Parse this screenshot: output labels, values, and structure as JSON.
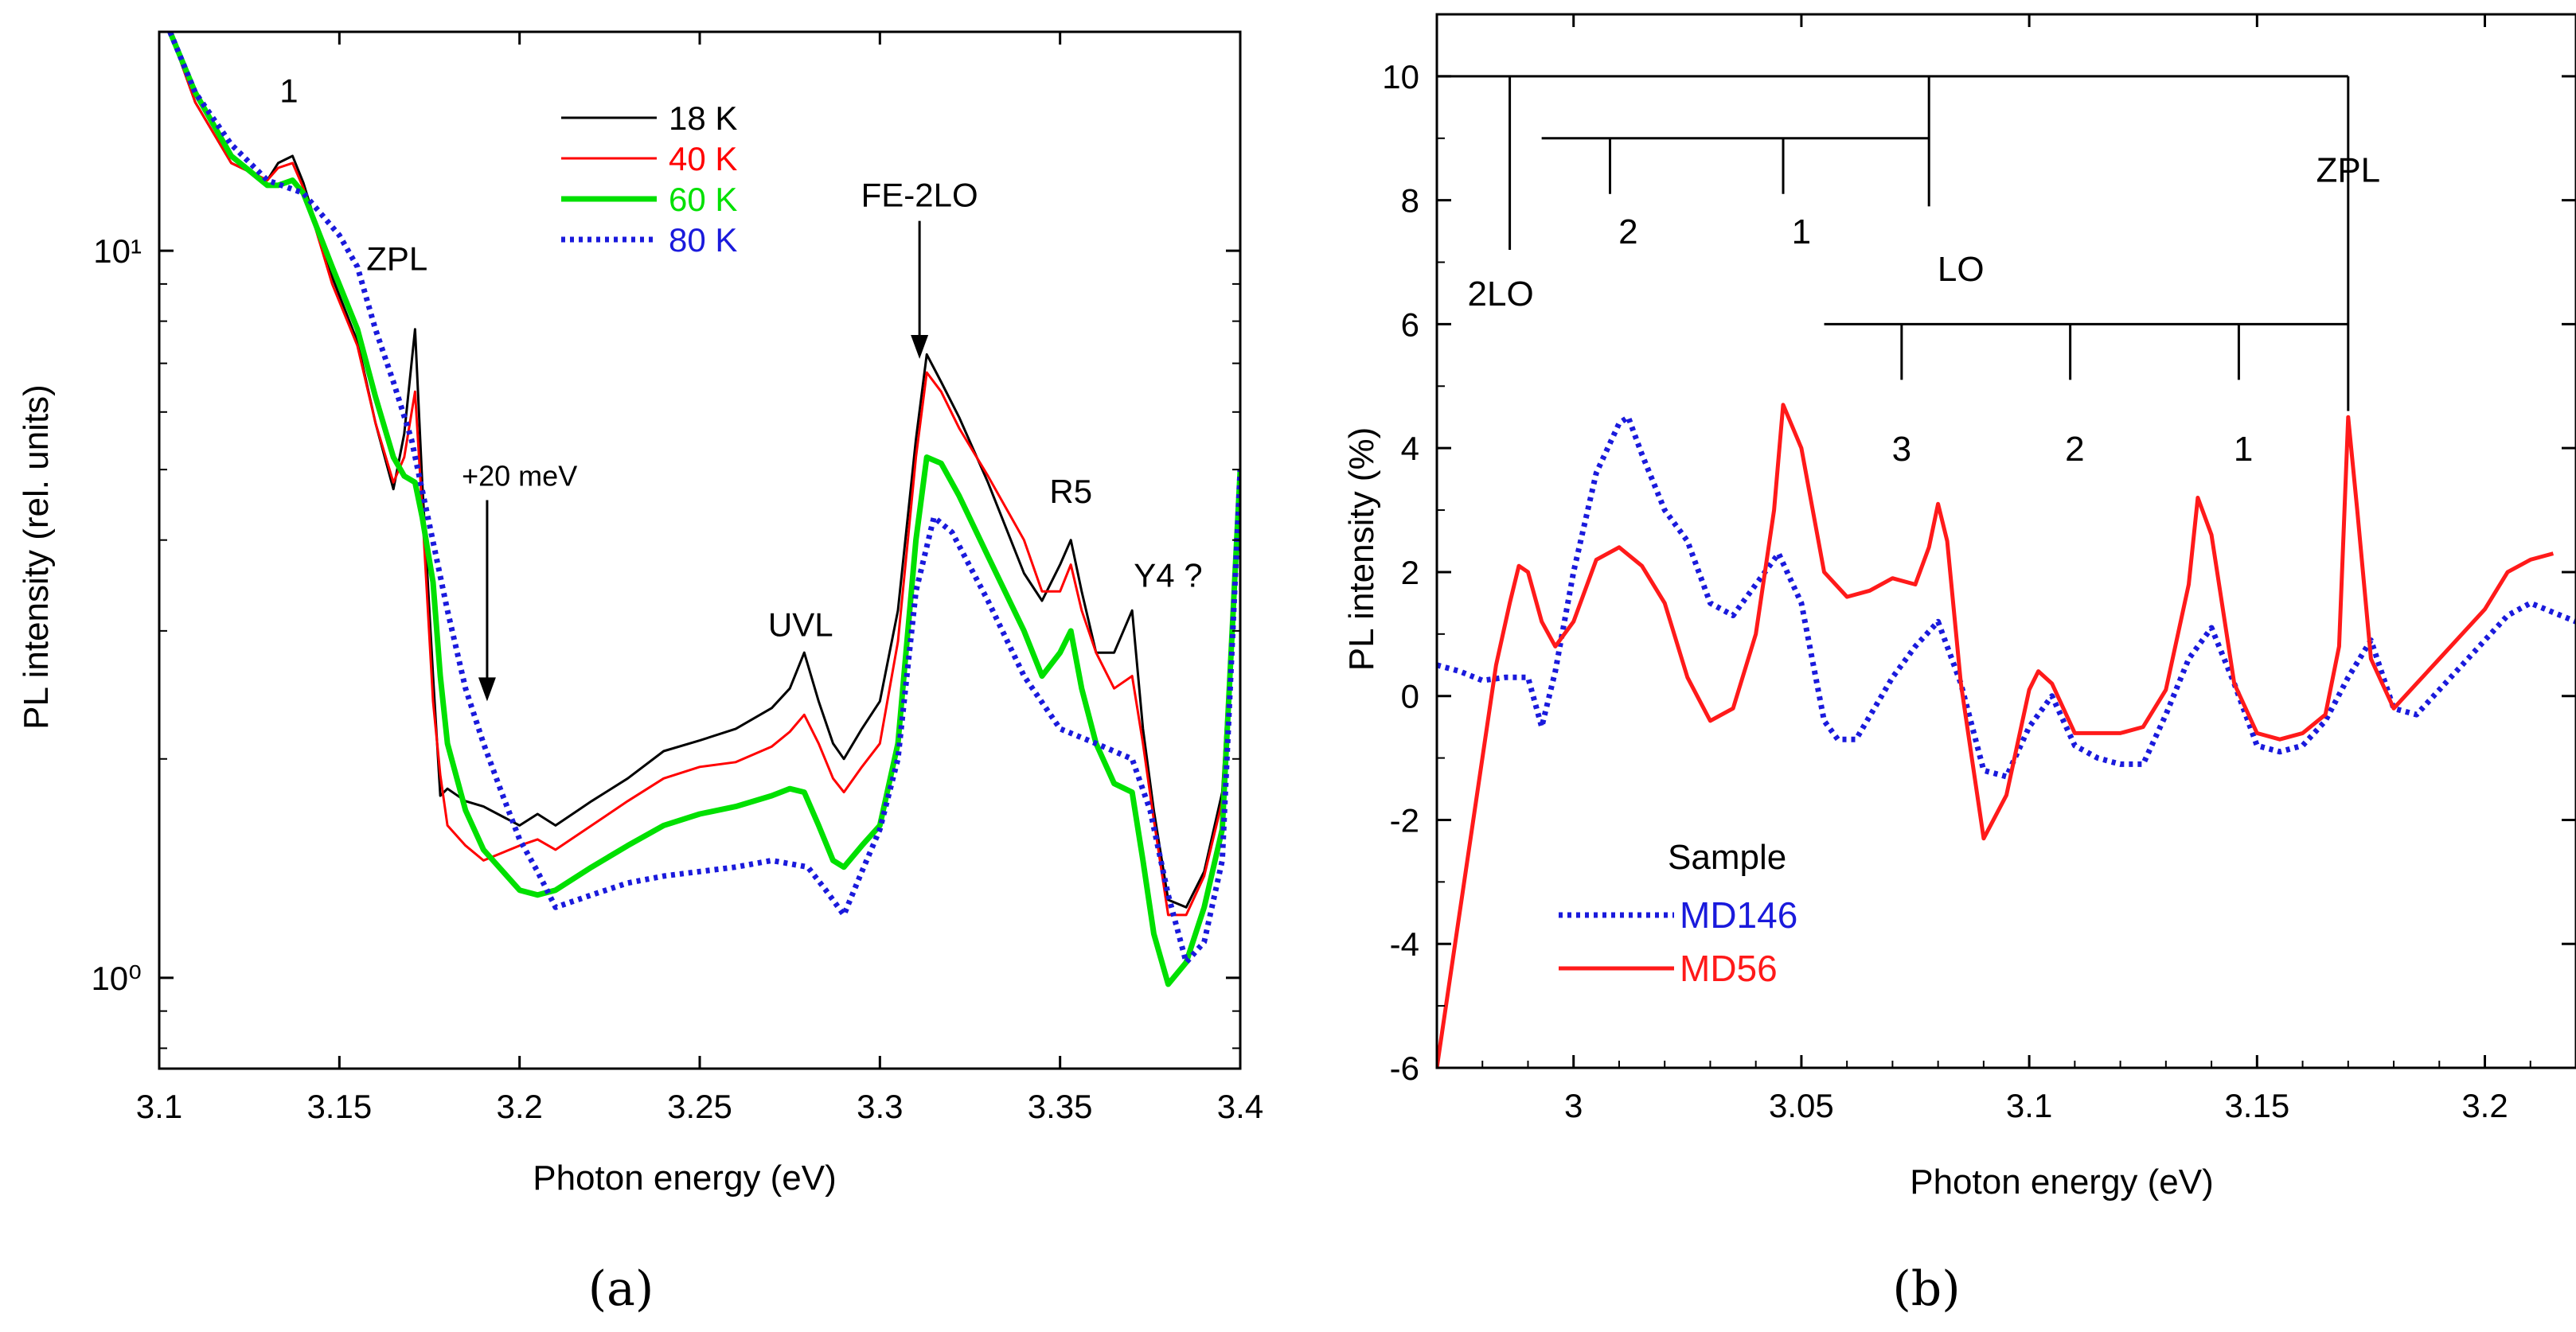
{
  "chart_data": [
    {
      "panel": "a",
      "type": "line",
      "yscale": "log",
      "caption": "(a)",
      "title": "",
      "xlabel": "Photon energy (eV)",
      "ylabel": "PL intensity (rel. units)",
      "xlim": [
        3.1,
        3.4
      ],
      "ylim": [
        0.75,
        20
      ],
      "x_ticks": [
        3.1,
        3.15,
        3.2,
        3.25,
        3.3,
        3.35,
        3.4
      ],
      "x_tick_labels": [
        "3.1",
        "3.15",
        "3.2",
        "3.25",
        "3.3",
        "3.35",
        "3.4"
      ],
      "y_ticks": [
        1,
        10
      ],
      "y_tick_labels": [
        "10⁰",
        "10¹"
      ],
      "grid": false,
      "legend_position": "top-center",
      "series": [
        {
          "name": "18 K",
          "color": "#000000",
          "style": "solid",
          "x": [
            3.103,
            3.11,
            3.12,
            3.13,
            3.133,
            3.137,
            3.14,
            3.148,
            3.155,
            3.16,
            3.165,
            3.168,
            3.171,
            3.173,
            3.176,
            3.178,
            3.18,
            3.185,
            3.19,
            3.2,
            3.205,
            3.21,
            3.22,
            3.23,
            3.24,
            3.25,
            3.26,
            3.27,
            3.275,
            3.279,
            3.283,
            3.287,
            3.29,
            3.295,
            3.3,
            3.305,
            3.31,
            3.313,
            3.317,
            3.322,
            3.33,
            3.34,
            3.345,
            3.35,
            3.353,
            3.356,
            3.36,
            3.365,
            3.37,
            3.373,
            3.376,
            3.38,
            3.385,
            3.39,
            3.395,
            3.4
          ],
          "y": [
            20,
            16,
            13.2,
            12.5,
            13.2,
            13.5,
            12.4,
            9.2,
            7.5,
            5.8,
            4.7,
            5.6,
            7.8,
            4.8,
            2.6,
            1.78,
            1.82,
            1.75,
            1.72,
            1.62,
            1.68,
            1.62,
            1.75,
            1.88,
            2.05,
            2.12,
            2.2,
            2.35,
            2.5,
            2.8,
            2.4,
            2.1,
            2.0,
            2.2,
            2.4,
            3.2,
            5.5,
            7.2,
            6.6,
            5.9,
            4.8,
            3.6,
            3.3,
            3.7,
            4.0,
            3.4,
            2.8,
            2.8,
            3.2,
            2.2,
            1.7,
            1.28,
            1.25,
            1.4,
            1.8,
            5.0
          ]
        },
        {
          "name": "40 K",
          "color": "#ff0000",
          "style": "solid",
          "x": [
            3.103,
            3.11,
            3.12,
            3.13,
            3.133,
            3.137,
            3.14,
            3.148,
            3.155,
            3.16,
            3.165,
            3.168,
            3.171,
            3.173,
            3.176,
            3.178,
            3.18,
            3.185,
            3.19,
            3.2,
            3.205,
            3.21,
            3.22,
            3.23,
            3.24,
            3.25,
            3.26,
            3.27,
            3.275,
            3.279,
            3.283,
            3.287,
            3.29,
            3.295,
            3.3,
            3.305,
            3.31,
            3.313,
            3.317,
            3.322,
            3.33,
            3.34,
            3.345,
            3.35,
            3.353,
            3.356,
            3.36,
            3.365,
            3.37,
            3.373,
            3.376,
            3.38,
            3.385,
            3.39,
            3.395,
            3.4
          ],
          "y": [
            20,
            16,
            13.2,
            12.5,
            13,
            13.2,
            12.2,
            9.0,
            7.4,
            5.8,
            4.8,
            5.2,
            6.4,
            4.4,
            2.4,
            1.9,
            1.62,
            1.52,
            1.45,
            1.52,
            1.55,
            1.5,
            1.62,
            1.75,
            1.88,
            1.95,
            1.98,
            2.08,
            2.18,
            2.3,
            2.1,
            1.88,
            1.8,
            1.95,
            2.1,
            2.9,
            5.2,
            6.8,
            6.4,
            5.7,
            4.9,
            4.0,
            3.4,
            3.4,
            3.7,
            3.2,
            2.8,
            2.5,
            2.6,
            2.1,
            1.65,
            1.22,
            1.22,
            1.38,
            1.75,
            5.0
          ]
        },
        {
          "name": "60 K",
          "color": "#00e000",
          "style": "solid",
          "x": [
            3.103,
            3.11,
            3.12,
            3.13,
            3.133,
            3.137,
            3.14,
            3.148,
            3.155,
            3.16,
            3.165,
            3.168,
            3.171,
            3.173,
            3.176,
            3.178,
            3.18,
            3.185,
            3.19,
            3.2,
            3.205,
            3.21,
            3.22,
            3.23,
            3.24,
            3.25,
            3.26,
            3.27,
            3.275,
            3.279,
            3.283,
            3.287,
            3.29,
            3.295,
            3.3,
            3.305,
            3.31,
            3.313,
            3.317,
            3.322,
            3.33,
            3.34,
            3.345,
            3.35,
            3.353,
            3.356,
            3.36,
            3.365,
            3.37,
            3.373,
            3.376,
            3.38,
            3.385,
            3.39,
            3.395,
            3.4
          ],
          "y": [
            20,
            16.5,
            13.5,
            12.3,
            12.3,
            12.5,
            12.0,
            9.5,
            7.8,
            6.3,
            5.2,
            4.9,
            4.8,
            4.3,
            3.5,
            2.6,
            2.1,
            1.7,
            1.5,
            1.32,
            1.3,
            1.32,
            1.42,
            1.52,
            1.62,
            1.68,
            1.72,
            1.78,
            1.82,
            1.8,
            1.62,
            1.45,
            1.42,
            1.52,
            1.62,
            2.1,
            4.0,
            5.2,
            5.1,
            4.6,
            3.8,
            3.0,
            2.6,
            2.8,
            3.0,
            2.5,
            2.1,
            1.85,
            1.8,
            1.45,
            1.15,
            0.98,
            1.05,
            1.25,
            1.6,
            5.0
          ]
        },
        {
          "name": "80 K",
          "color": "#1a1adc",
          "style": "dotted",
          "x": [
            3.103,
            3.11,
            3.12,
            3.13,
            3.14,
            3.15,
            3.155,
            3.16,
            3.165,
            3.17,
            3.175,
            3.18,
            3.185,
            3.19,
            3.195,
            3.2,
            3.205,
            3.21,
            3.22,
            3.23,
            3.24,
            3.25,
            3.26,
            3.27,
            3.28,
            3.285,
            3.29,
            3.295,
            3.3,
            3.305,
            3.31,
            3.315,
            3.32,
            3.33,
            3.34,
            3.35,
            3.36,
            3.37,
            3.375,
            3.38,
            3.385,
            3.39,
            3.395,
            3.4
          ],
          "y": [
            20,
            16.5,
            14,
            12.5,
            12,
            10.5,
            9.5,
            7.8,
            6.6,
            5.5,
            4.2,
            3.2,
            2.5,
            2.1,
            1.8,
            1.55,
            1.4,
            1.25,
            1.3,
            1.35,
            1.38,
            1.4,
            1.42,
            1.45,
            1.42,
            1.32,
            1.22,
            1.4,
            1.6,
            2.0,
            3.4,
            4.3,
            4.1,
            3.3,
            2.6,
            2.2,
            2.1,
            2.0,
            1.7,
            1.3,
            1.05,
            1.12,
            1.45,
            5.0
          ]
        }
      ],
      "annotations": [
        {
          "text": "1",
          "x": 3.136,
          "y": 16
        },
        {
          "text": "ZPL",
          "x": 3.166,
          "y": 9.4
        },
        {
          "text": "+20 meV",
          "x": 3.2,
          "y": 4.75,
          "arrow_to": [
            3.191,
            2.4
          ]
        },
        {
          "text": "UVL",
          "x": 3.278,
          "y": 2.95
        },
        {
          "text": "FE-2LO",
          "x": 3.311,
          "y": 11.5,
          "arrow_to": [
            3.311,
            7.1
          ]
        },
        {
          "text": "R5",
          "x": 3.353,
          "y": 4.5
        },
        {
          "text": "Y4 ?",
          "x": 3.38,
          "y": 3.45
        }
      ]
    },
    {
      "panel": "b",
      "type": "line",
      "caption": "(b)",
      "title": "",
      "xlabel": "Photon energy (eV)",
      "ylabel": "PL intensity (%)",
      "xlim": [
        2.97,
        3.22
      ],
      "ylim": [
        -6,
        11
      ],
      "x_ticks": [
        3.0,
        3.05,
        3.1,
        3.15,
        3.2
      ],
      "x_tick_labels": [
        "3",
        "3.05",
        "3.1",
        "3.15",
        "3.2"
      ],
      "y_ticks": [
        -6,
        -4,
        -2,
        0,
        2,
        4,
        6,
        8,
        10
      ],
      "y_tick_labels": [
        "-6",
        "-4",
        "-2",
        "0",
        "2",
        "4",
        "6",
        "8",
        "10"
      ],
      "grid": false,
      "legend_title": "Sample",
      "legend_position": "bottom-left",
      "series": [
        {
          "name": "MD146",
          "color": "#1a1adc",
          "style": "dotted",
          "x": [
            2.97,
            2.975,
            2.98,
            2.985,
            2.99,
            2.993,
            2.996,
            3.0,
            3.005,
            3.01,
            3.012,
            3.015,
            3.02,
            3.025,
            3.03,
            3.035,
            3.04,
            3.045,
            3.05,
            3.055,
            3.058,
            3.062,
            3.066,
            3.07,
            3.075,
            3.08,
            3.085,
            3.09,
            3.095,
            3.1,
            3.105,
            3.11,
            3.115,
            3.12,
            3.125,
            3.13,
            3.135,
            3.14,
            3.145,
            3.15,
            3.155,
            3.16,
            3.165,
            3.17,
            3.175,
            3.18,
            3.185,
            3.19,
            3.195,
            3.2,
            3.205,
            3.21,
            3.215,
            3.22
          ],
          "y": [
            0.5,
            0.4,
            0.25,
            0.3,
            0.3,
            -0.5,
            0.4,
            2.0,
            3.6,
            4.4,
            4.5,
            3.9,
            3.0,
            2.5,
            1.5,
            1.3,
            1.8,
            2.3,
            1.5,
            -0.4,
            -0.7,
            -0.7,
            -0.2,
            0.3,
            0.8,
            1.2,
            0.2,
            -1.2,
            -1.3,
            -0.5,
            0.0,
            -0.8,
            -1.0,
            -1.1,
            -1.1,
            -0.3,
            0.6,
            1.1,
            0.2,
            -0.8,
            -0.9,
            -0.8,
            -0.4,
            0.3,
            0.9,
            -0.2,
            -0.3,
            0.1,
            0.5,
            0.9,
            1.3,
            1.5,
            1.35,
            1.2
          ]
        },
        {
          "name": "MD56",
          "color": "#ff1a1a",
          "style": "solid",
          "x": [
            2.97,
            2.975,
            2.98,
            2.983,
            2.986,
            2.988,
            2.99,
            2.993,
            2.996,
            3.0,
            3.005,
            3.01,
            3.015,
            3.02,
            3.025,
            3.03,
            3.035,
            3.04,
            3.044,
            3.046,
            3.05,
            3.055,
            3.06,
            3.065,
            3.07,
            3.075,
            3.078,
            3.08,
            3.082,
            3.085,
            3.09,
            3.095,
            3.1,
            3.102,
            3.105,
            3.11,
            3.115,
            3.12,
            3.125,
            3.13,
            3.135,
            3.137,
            3.14,
            3.145,
            3.15,
            3.155,
            3.16,
            3.165,
            3.168,
            3.17,
            3.172,
            3.175,
            3.18,
            3.185,
            3.19,
            3.195,
            3.2,
            3.205,
            3.21,
            3.215
          ],
          "y": [
            -6.0,
            -3.5,
            -1.0,
            0.5,
            1.5,
            2.1,
            2.0,
            1.2,
            0.8,
            1.2,
            2.2,
            2.4,
            2.1,
            1.5,
            0.3,
            -0.4,
            -0.2,
            1.0,
            3.0,
            4.7,
            4.0,
            2.0,
            1.6,
            1.7,
            1.9,
            1.8,
            2.4,
            3.1,
            2.5,
            0.2,
            -2.3,
            -1.6,
            0.1,
            0.4,
            0.2,
            -0.6,
            -0.6,
            -0.6,
            -0.5,
            0.1,
            1.8,
            3.2,
            2.6,
            0.2,
            -0.6,
            -0.7,
            -0.6,
            -0.3,
            0.8,
            4.5,
            3.0,
            0.6,
            -0.2,
            0.2,
            0.6,
            1.0,
            1.4,
            2.0,
            2.2,
            2.3
          ]
        }
      ],
      "annotations": [
        {
          "text": "2LO",
          "x": 2.984,
          "y": 6.3
        },
        {
          "text": "2",
          "x": 3.012,
          "y": 7.3
        },
        {
          "text": "1",
          "x": 3.05,
          "y": 7.3
        },
        {
          "text": "LO",
          "x": 3.085,
          "y": 6.7
        },
        {
          "text": "ZPL",
          "x": 3.17,
          "y": 8.3
        },
        {
          "text": "3",
          "x": 3.072,
          "y": 3.8
        },
        {
          "text": "2",
          "x": 3.11,
          "y": 3.8
        },
        {
          "text": "1",
          "x": 3.147,
          "y": 3.8
        }
      ],
      "phonon_ladders": [
        {
          "y": 10,
          "x_start": 2.97,
          "x_end": 3.17,
          "ticks": [
            2.986,
            3.078,
            3.17
          ]
        },
        {
          "y": 9,
          "x_start": 2.993,
          "x_end": 3.078,
          "ticks": [
            3.008,
            3.046
          ]
        },
        {
          "y": 6,
          "x_start": 3.055,
          "x_end": 3.17,
          "ticks": [
            3.072,
            3.109,
            3.146
          ]
        }
      ]
    }
  ]
}
